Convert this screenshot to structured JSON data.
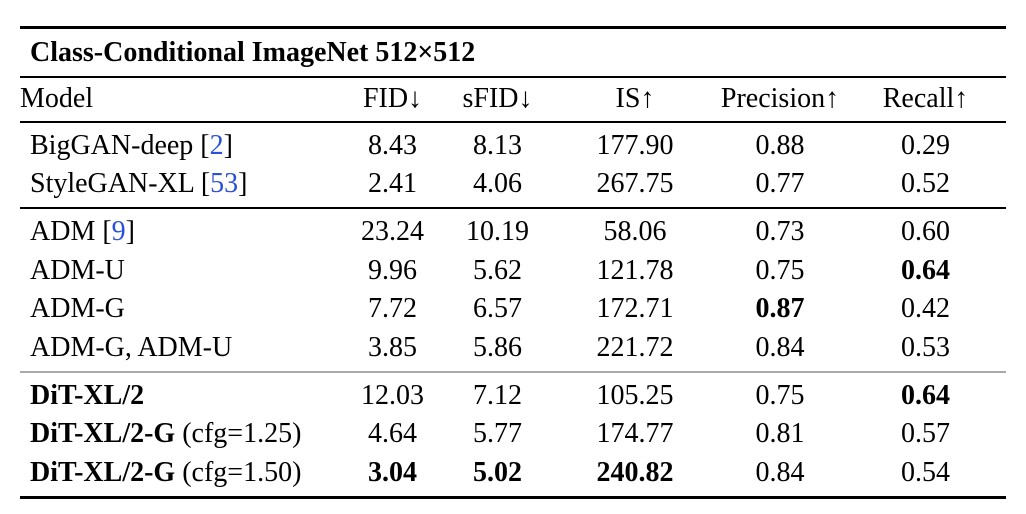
{
  "table": {
    "title": "Class-Conditional ImageNet 512×512",
    "columns": [
      "Model",
      "FID↓",
      "sFID↓",
      "IS↑",
      "Precision↑",
      "Recall↑"
    ],
    "citation_color": "#2950d8",
    "groups": [
      {
        "name": "gan-baselines",
        "rows": [
          {
            "model": "BigGAN-deep",
            "cite": "2",
            "note": "",
            "model_bold": false,
            "values": [
              "8.43",
              "8.13",
              "177.90",
              "0.88",
              "0.29"
            ],
            "bold_mask": [
              false,
              false,
              false,
              false,
              false
            ]
          },
          {
            "model": "StyleGAN-XL",
            "cite": "53",
            "note": "",
            "model_bold": false,
            "values": [
              "2.41",
              "4.06",
              "267.75",
              "0.77",
              "0.52"
            ],
            "bold_mask": [
              false,
              false,
              false,
              false,
              false
            ]
          }
        ]
      },
      {
        "name": "adm-baselines",
        "rows": [
          {
            "model": "ADM",
            "cite": "9",
            "note": "",
            "model_bold": false,
            "values": [
              "23.24",
              "10.19",
              "58.06",
              "0.73",
              "0.60"
            ],
            "bold_mask": [
              false,
              false,
              false,
              false,
              false
            ]
          },
          {
            "model": "ADM-U",
            "cite": "",
            "note": "",
            "model_bold": false,
            "values": [
              "9.96",
              "5.62",
              "121.78",
              "0.75",
              "0.64"
            ],
            "bold_mask": [
              false,
              false,
              false,
              false,
              true
            ]
          },
          {
            "model": "ADM-G",
            "cite": "",
            "note": "",
            "model_bold": false,
            "values": [
              "7.72",
              "6.57",
              "172.71",
              "0.87",
              "0.42"
            ],
            "bold_mask": [
              false,
              false,
              false,
              true,
              false
            ]
          },
          {
            "model": "ADM-G, ADM-U",
            "cite": "",
            "note": "",
            "model_bold": false,
            "values": [
              "3.85",
              "5.86",
              "221.72",
              "0.84",
              "0.53"
            ],
            "bold_mask": [
              false,
              false,
              false,
              false,
              false
            ]
          }
        ]
      },
      {
        "name": "dit-models",
        "rows": [
          {
            "model": "DiT-XL/2",
            "cite": "",
            "note": "",
            "model_bold": true,
            "values": [
              "12.03",
              "7.12",
              "105.25",
              "0.75",
              "0.64"
            ],
            "bold_mask": [
              false,
              false,
              false,
              false,
              true
            ]
          },
          {
            "model": "DiT-XL/2-G",
            "cite": "",
            "note": " (cfg=1.25)",
            "model_bold": true,
            "values": [
              "4.64",
              "5.77",
              "174.77",
              "0.81",
              "0.57"
            ],
            "bold_mask": [
              false,
              false,
              false,
              false,
              false
            ]
          },
          {
            "model": "DiT-XL/2-G",
            "cite": "",
            "note": " (cfg=1.50)",
            "model_bold": true,
            "values": [
              "3.04",
              "5.02",
              "240.82",
              "0.84",
              "0.54"
            ],
            "bold_mask": [
              true,
              true,
              true,
              false,
              false
            ]
          }
        ]
      }
    ]
  }
}
